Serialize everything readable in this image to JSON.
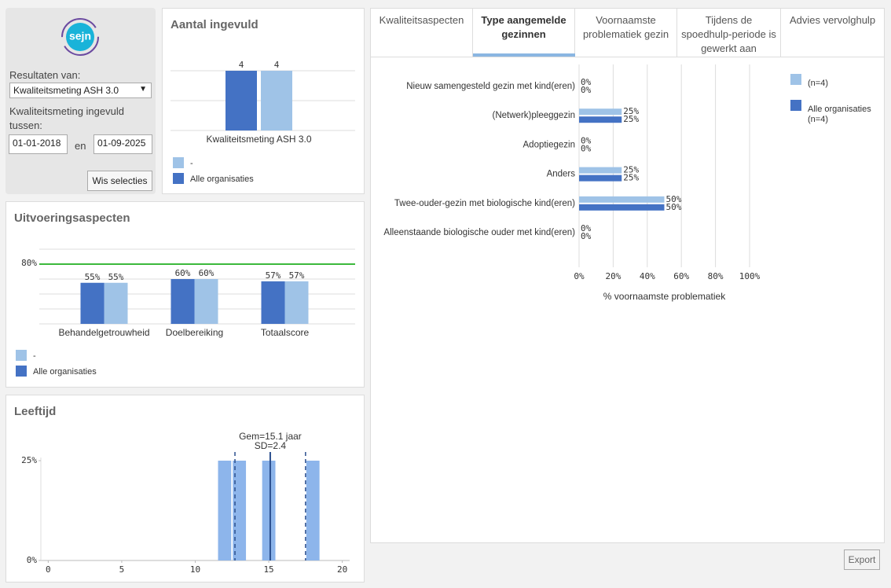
{
  "logo": "sejn",
  "filters": {
    "results_label": "Resultaten van:",
    "results_select": "Kwaliteitsmeting ASH 3.0",
    "period_label": "Kwaliteitsmeting ingevuld tussen:",
    "date_from": "01-01-2018",
    "date_separator": "en",
    "date_to": "01-09-2025",
    "clear_button": "Wis selecties"
  },
  "tabs": {
    "items": [
      "Kwaliteitsaspecten",
      "Type aangemelde gezinnen",
      "Voornaamste problematiek gezin",
      "Tijdens de spoedhulp-periode is gewerkt aan",
      "Advies vervolghulp"
    ],
    "active": 1
  },
  "export_button": "Export",
  "chart_data": [
    {
      "type": "bar",
      "title": "Aantal ingevuld",
      "categories": [
        "Kwaliteitsmeting ASH 3.0"
      ],
      "series": [
        {
          "name": "-",
          "color": "#9fc3e7",
          "values": [
            4
          ]
        },
        {
          "name": "Alle organisaties",
          "color": "#4472c4",
          "values": [
            4
          ]
        }
      ],
      "ylim": [
        0,
        4
      ],
      "yticks": [
        0,
        2,
        4
      ],
      "grid": true,
      "tick_labels": false
    },
    {
      "type": "bar",
      "title": "Uitvoeringsaspecten",
      "categories": [
        "Behandelgetrouwheid",
        "Doelbereiking",
        "Totaalscore"
      ],
      "series": [
        {
          "name": "-",
          "color": "#9fc3e7",
          "values": [
            55,
            60,
            57
          ],
          "value_labels": [
            "55%",
            "60%",
            "57%"
          ]
        },
        {
          "name": "Alle organisaties",
          "color": "#4472c4",
          "values": [
            55,
            60,
            57
          ],
          "value_labels": [
            "55%",
            "60%",
            "57%"
          ]
        }
      ],
      "ylim": [
        0,
        100
      ],
      "yticks": [
        0,
        20,
        40,
        60,
        80,
        100
      ],
      "grid": true,
      "tick_labels": false,
      "reference_line": {
        "value": 80,
        "label": "80%",
        "color": "#3cb93c"
      }
    },
    {
      "type": "bar",
      "title": "Leeftijd",
      "x": [
        12,
        13,
        15,
        18
      ],
      "values": [
        25,
        25,
        25,
        25
      ],
      "color": "#8db5eb",
      "xlim": [
        -0.5,
        20.5
      ],
      "xticks": [
        0,
        5,
        10,
        15,
        20
      ],
      "ylim": [
        0,
        25
      ],
      "yticks": [
        {
          "value": 0,
          "label": "0%"
        },
        {
          "value": 25,
          "label": "25%"
        }
      ],
      "mean": {
        "value": 15.1,
        "label": "Gem=15.1 jaar",
        "color": "#2b4f8e"
      },
      "sd": {
        "value": 2.4,
        "label": "SD=2.4"
      }
    },
    {
      "type": "barh",
      "categories": [
        "Nieuw samengesteld gezin met kind(eren)",
        "(Netwerk)pleeggezin",
        "Adoptiegezin",
        "Anders",
        "Twee-ouder-gezin met biologische kind(eren)",
        "Alleenstaande biologische ouder met kind(eren)"
      ],
      "series": [
        {
          "name": "(n=4)",
          "color": "#9fc3e7",
          "values": [
            0,
            25,
            0,
            25,
            50,
            0
          ],
          "value_labels": [
            "0%",
            "25%",
            "0%",
            "25%",
            "50%",
            "0%"
          ]
        },
        {
          "name": "Alle organisaties (n=4)",
          "color": "#4472c4",
          "values": [
            0,
            25,
            0,
            25,
            50,
            0
          ],
          "value_labels": [
            "0%",
            "25%",
            "0%",
            "25%",
            "50%",
            "0%"
          ]
        }
      ],
      "xlim": [
        0,
        100
      ],
      "xticks": [
        {
          "value": 0,
          "label": "0%"
        },
        {
          "value": 20,
          "label": "20%"
        },
        {
          "value": 40,
          "label": "40%"
        },
        {
          "value": 60,
          "label": "60%"
        },
        {
          "value": 80,
          "label": "80%"
        },
        {
          "value": 100,
          "label": "100%"
        }
      ],
      "xlabel": "% voornaamste problematiek",
      "grid": true
    }
  ]
}
